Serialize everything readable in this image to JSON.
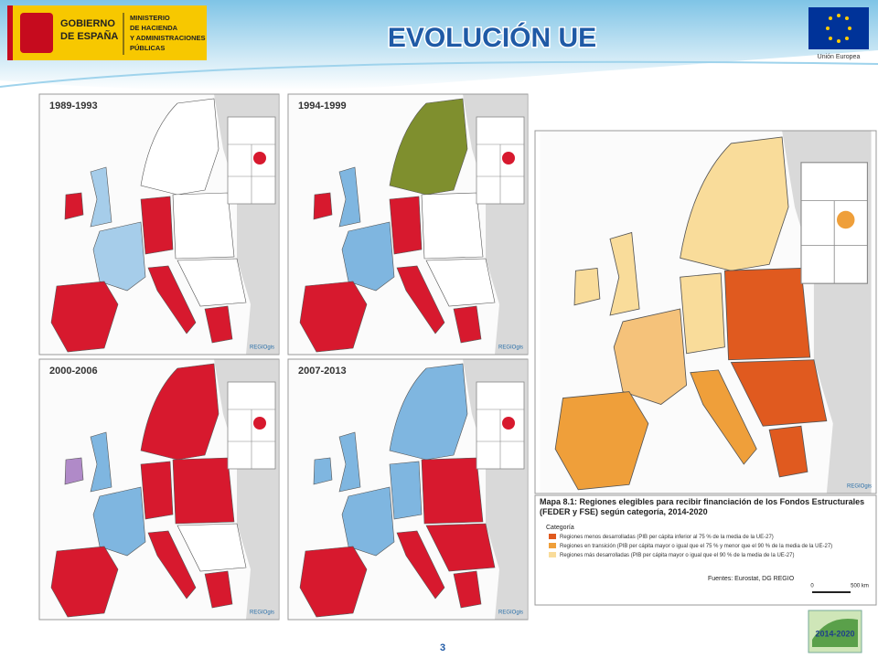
{
  "header": {
    "gov_line1": "GOBIERNO",
    "gov_line2": "DE ESPAÑA",
    "ministry": [
      "MINISTERIO",
      "DE HACIENDA",
      "Y ADMINISTRACIONES",
      "PÚBLICAS"
    ],
    "title": "EVOLUCIÓN UE",
    "eu_label": "Unión Europea"
  },
  "maps": [
    {
      "label": "1989-1993",
      "credit": "REGIOgis"
    },
    {
      "label": "1994-1999",
      "credit": "REGIOgis"
    },
    {
      "label": "2000-2006",
      "credit": "REGIOgis"
    },
    {
      "label": "2007-2013",
      "credit": "REGIOgis"
    }
  ],
  "main_map": {
    "credit": "REGIOgis",
    "caption": "Mapa 8.1: Regiones elegibles para recibir financiación de los Fondos Estructurales (FEDER y FSE) según categoría, 2014-2020",
    "legend_title": "Categoría",
    "legend": [
      "Regiones menos desarrolladas (PIB per cápita inferior al 75 % de la media de la UE-27)",
      "Regiones en transición (PIB per cápita mayor o igual que el 75 % y menor que el 90 % de la media de la UE-27)",
      "Regiones más desarrolladas (PIB per cápita mayor o igual que el 90 % de la media de la UE-27)"
    ],
    "sources": "Fuentes: Eurostat, DG REGIO",
    "scale_start": "0",
    "scale_end": "500 km"
  },
  "footer": {
    "page": "3",
    "badge": "2014-2020"
  }
}
